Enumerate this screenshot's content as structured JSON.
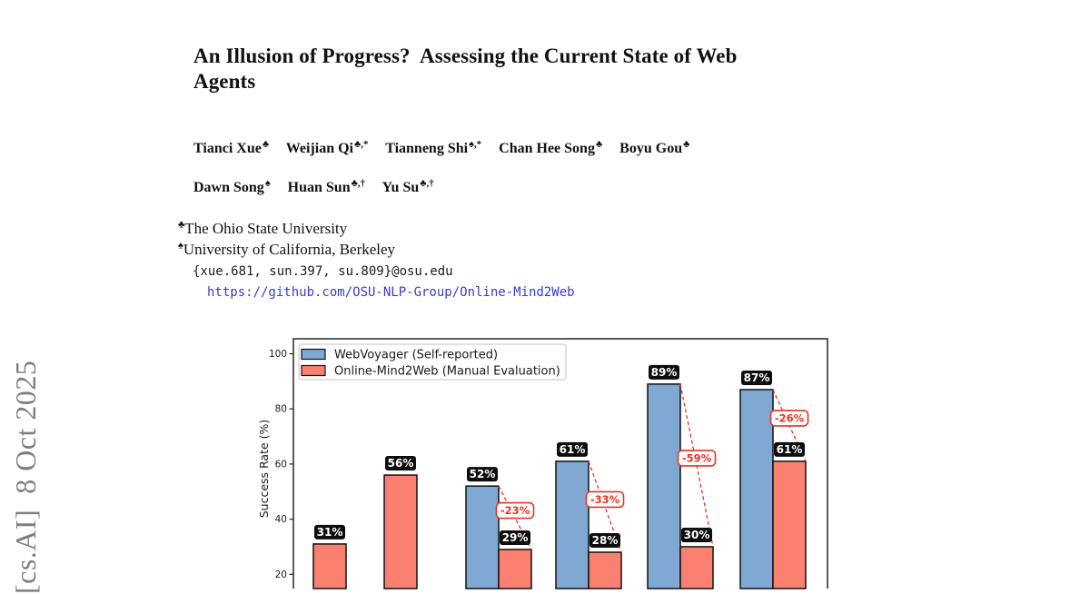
{
  "arxiv_stamp": "[cs.AI]  8 Oct 2025",
  "paper": {
    "title_lines": [
      "An Illusion of Progress?  Assessing the Current State of Web",
      "Agents"
    ],
    "authors_line1": [
      {
        "name": "Tianci Xue",
        "sup": "♣"
      },
      {
        "name": "Weijian Qi",
        "sup": "♣,*"
      },
      {
        "name": "Tianneng Shi",
        "sup": "♠,*"
      },
      {
        "name": "Chan Hee Song",
        "sup": "♣"
      },
      {
        "name": "Boyu Gou",
        "sup": "♣"
      }
    ],
    "authors_line2": [
      {
        "name": "Dawn Song",
        "sup": "♠"
      },
      {
        "name": "Huan Sun",
        "sup": "♣,†"
      },
      {
        "name": "Yu Su",
        "sup": "♣,†"
      }
    ],
    "affiliations": [
      {
        "symbol": "♣",
        "text": "The Ohio State University"
      },
      {
        "symbol": "♠",
        "text": "University of California, Berkeley"
      }
    ],
    "email": "{xue.681, sun.397, su.809}@osu.edu",
    "github_url": "https://github.com/OSU-NLP-Group/Online-Mind2Web"
  },
  "chart_data": {
    "type": "bar",
    "title": "",
    "xlabel": "",
    "ylabel": "Success Rate (%)",
    "ylim": [
      0,
      105
    ],
    "yticks": [
      20,
      40,
      60,
      80,
      100
    ],
    "grid": false,
    "legend_position": "upper-left",
    "x_tick_labels_visible": false,
    "series": [
      {
        "name": "WebVoyager (Self-reported)",
        "color": "#7FA8D2",
        "values": [
          null,
          null,
          52,
          61,
          89,
          87
        ]
      },
      {
        "name": "Online-Mind2Web (Manual Evaluation)",
        "color": "#FA8072",
        "values": [
          31,
          56,
          29,
          28,
          30,
          61
        ]
      }
    ],
    "value_label_suffix": "%",
    "diffs": [
      null,
      null,
      "-23%",
      "-33%",
      "-59%",
      "-26%"
    ],
    "colors": {
      "bar_edge": "#111111",
      "value_label_bg": "#0d0d0d",
      "value_label_text": "#ffffff",
      "diff_color": "#ED3124",
      "axis": "#262626",
      "legend_border": "#cfcfcf"
    }
  }
}
